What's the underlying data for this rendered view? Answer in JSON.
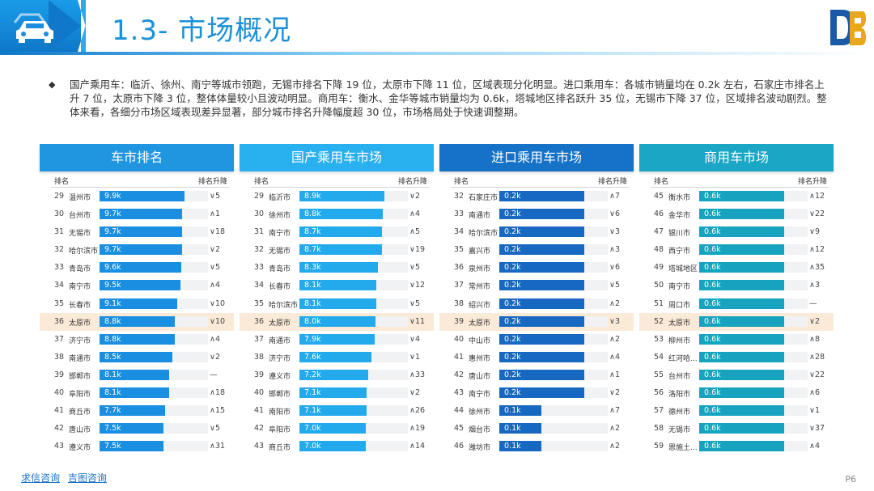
{
  "header": {
    "title": "1.3- 市场概况",
    "brand_color": "#1a90d8"
  },
  "summary": {
    "bullet": "◆",
    "text": "国产乘用车：临沂、徐州、南宁等城市领跑，无锡市排名下降 19 位，太原市下降 11 位，区域表现分化明显。进口乘用车：各城市销量均在 0.2k 左右，石家庄市排名上升 7 位，太原市下降 3 位，整体体量较小且波动明显。商用车：衡水、金华等城市销量均为 0.6k，塔城地区排名跃升 35 位，无锡市下降 37 位，区域排名波动剧烈。整体来看，各细分市场区域表现差异显著，部分城市排名升降幅度超 30 位，市场格局处于快速调整期。"
  },
  "panels": [
    {
      "title": "车市排名",
      "head_color": "#2196e0",
      "bar_color": "#1a8ee0",
      "col_rank": "排名",
      "col_change": "排名升降",
      "rows": [
        {
          "rank": "29",
          "city": "温州市",
          "value": "9.9k",
          "v": 9.9,
          "change": "∨5",
          "hl": false
        },
        {
          "rank": "30",
          "city": "台州市",
          "value": "9.7k",
          "v": 9.7,
          "change": "∧1",
          "hl": false
        },
        {
          "rank": "31",
          "city": "无锡市",
          "value": "9.7k",
          "v": 9.7,
          "change": "∨18",
          "hl": false
        },
        {
          "rank": "32",
          "city": "哈尔滨市",
          "value": "9.7k",
          "v": 9.7,
          "change": "∨2",
          "hl": false
        },
        {
          "rank": "33",
          "city": "青岛市",
          "value": "9.6k",
          "v": 9.6,
          "change": "∨5",
          "hl": false
        },
        {
          "rank": "34",
          "city": "南宁市",
          "value": "9.5k",
          "v": 9.5,
          "change": "∧4",
          "hl": false
        },
        {
          "rank": "35",
          "city": "长春市",
          "value": "9.1k",
          "v": 9.1,
          "change": "∨10",
          "hl": false
        },
        {
          "rank": "36",
          "city": "太原市",
          "value": "8.8k",
          "v": 8.8,
          "change": "∨10",
          "hl": true
        },
        {
          "rank": "37",
          "city": "济宁市",
          "value": "8.8k",
          "v": 8.8,
          "change": "∧4",
          "hl": false
        },
        {
          "rank": "38",
          "city": "南通市",
          "value": "8.5k",
          "v": 8.5,
          "change": "∨2",
          "hl": false
        },
        {
          "rank": "39",
          "city": "邯郸市",
          "value": "8.1k",
          "v": 8.1,
          "change": "—",
          "hl": false
        },
        {
          "rank": "40",
          "city": "阜阳市",
          "value": "8.1k",
          "v": 8.1,
          "change": "∧18",
          "hl": false
        },
        {
          "rank": "41",
          "city": "商丘市",
          "value": "7.7k",
          "v": 7.7,
          "change": "∧15",
          "hl": false
        },
        {
          "rank": "42",
          "city": "唐山市",
          "value": "7.5k",
          "v": 7.5,
          "change": "∨5",
          "hl": false
        },
        {
          "rank": "43",
          "city": "遵义市",
          "value": "7.5k",
          "v": 7.5,
          "change": "∧31",
          "hl": false
        }
      ]
    },
    {
      "title": "国产乘用车市场",
      "head_color": "#29b0ee",
      "bar_color": "#22aaec",
      "col_rank": "排名",
      "col_change": "排名升降",
      "rows": [
        {
          "rank": "29",
          "city": "临沂市",
          "value": "8.9k",
          "v": 8.9,
          "change": "∨2",
          "hl": false
        },
        {
          "rank": "30",
          "city": "徐州市",
          "value": "8.8k",
          "v": 8.8,
          "change": "∧4",
          "hl": false
        },
        {
          "rank": "31",
          "city": "南宁市",
          "value": "8.7k",
          "v": 8.7,
          "change": "∧5",
          "hl": false
        },
        {
          "rank": "32",
          "city": "无锡市",
          "value": "8.7k",
          "v": 8.7,
          "change": "∨19",
          "hl": false
        },
        {
          "rank": "33",
          "city": "青岛市",
          "value": "8.3k",
          "v": 8.3,
          "change": "∨5",
          "hl": false
        },
        {
          "rank": "34",
          "city": "长春市",
          "value": "8.1k",
          "v": 8.1,
          "change": "∨12",
          "hl": false
        },
        {
          "rank": "35",
          "city": "哈尔滨市",
          "value": "8.1k",
          "v": 8.1,
          "change": "∨5",
          "hl": false
        },
        {
          "rank": "36",
          "city": "太原市",
          "value": "8.0k",
          "v": 8.0,
          "change": "∨11",
          "hl": true
        },
        {
          "rank": "37",
          "city": "南通市",
          "value": "7.9k",
          "v": 7.9,
          "change": "∨4",
          "hl": false
        },
        {
          "rank": "38",
          "city": "济宁市",
          "value": "7.6k",
          "v": 7.6,
          "change": "∨1",
          "hl": false
        },
        {
          "rank": "39",
          "city": "遵义市",
          "value": "7.2k",
          "v": 7.2,
          "change": "∧33",
          "hl": false
        },
        {
          "rank": "40",
          "city": "邯郸市",
          "value": "7.1k",
          "v": 7.1,
          "change": "∨2",
          "hl": false
        },
        {
          "rank": "41",
          "city": "南阳市",
          "value": "7.1k",
          "v": 7.1,
          "change": "∧26",
          "hl": false
        },
        {
          "rank": "42",
          "city": "阜阳市",
          "value": "7.0k",
          "v": 7.0,
          "change": "∧19",
          "hl": false
        },
        {
          "rank": "43",
          "city": "商丘市",
          "value": "7.0k",
          "v": 7.0,
          "change": "∧14",
          "hl": false
        }
      ]
    },
    {
      "title": "进口乘用车市场",
      "head_color": "#1572c6",
      "bar_color": "#1668c0",
      "col_rank": "排名",
      "col_change": "排名升降",
      "rows": [
        {
          "rank": "32",
          "city": "石家庄市",
          "value": "0.2k",
          "v": 0.2,
          "change": "∧7",
          "hl": false
        },
        {
          "rank": "33",
          "city": "南通市",
          "value": "0.2k",
          "v": 0.2,
          "change": "∨6",
          "hl": false
        },
        {
          "rank": "34",
          "city": "哈尔滨市",
          "value": "0.2k",
          "v": 0.2,
          "change": "∨3",
          "hl": false
        },
        {
          "rank": "35",
          "city": "嘉兴市",
          "value": "0.2k",
          "v": 0.2,
          "change": "∧3",
          "hl": false
        },
        {
          "rank": "36",
          "city": "泉州市",
          "value": "0.2k",
          "v": 0.2,
          "change": "∨6",
          "hl": false
        },
        {
          "rank": "37",
          "city": "常州市",
          "value": "0.2k",
          "v": 0.2,
          "change": "∨5",
          "hl": false
        },
        {
          "rank": "38",
          "city": "绍兴市",
          "value": "0.2k",
          "v": 0.2,
          "change": "∧2",
          "hl": false
        },
        {
          "rank": "39",
          "city": "太原市",
          "value": "0.2k",
          "v": 0.2,
          "change": "∨3",
          "hl": true
        },
        {
          "rank": "40",
          "city": "中山市",
          "value": "0.2k",
          "v": 0.2,
          "change": "∧2",
          "hl": false
        },
        {
          "rank": "41",
          "city": "惠州市",
          "value": "0.2k",
          "v": 0.2,
          "change": "∧4",
          "hl": false
        },
        {
          "rank": "42",
          "city": "唐山市",
          "value": "0.2k",
          "v": 0.2,
          "change": "∧1",
          "hl": false
        },
        {
          "rank": "43",
          "city": "南宁市",
          "value": "0.2k",
          "v": 0.2,
          "change": "∨2",
          "hl": false
        },
        {
          "rank": "44",
          "city": "徐州市",
          "value": "0.1k",
          "v": 0.1,
          "change": "∧7",
          "hl": false
        },
        {
          "rank": "45",
          "city": "烟台市",
          "value": "0.1k",
          "v": 0.1,
          "change": "∧2",
          "hl": false
        },
        {
          "rank": "46",
          "city": "潍坊市",
          "value": "0.1k",
          "v": 0.1,
          "change": "∧2",
          "hl": false
        }
      ]
    },
    {
      "title": "商用车市场",
      "head_color": "#1aa6c4",
      "bar_color": "#17a3c0",
      "col_rank": "排名",
      "col_change": "排名升降",
      "rows": [
        {
          "rank": "45",
          "city": "衡水市",
          "value": "0.6k",
          "v": 0.6,
          "change": "∧12",
          "hl": false
        },
        {
          "rank": "46",
          "city": "金华市",
          "value": "0.6k",
          "v": 0.6,
          "change": "∨22",
          "hl": false
        },
        {
          "rank": "47",
          "city": "银川市",
          "value": "0.6k",
          "v": 0.6,
          "change": "∨9",
          "hl": false
        },
        {
          "rank": "48",
          "city": "西宁市",
          "value": "0.6k",
          "v": 0.6,
          "change": "∧12",
          "hl": false
        },
        {
          "rank": "49",
          "city": "塔城地区",
          "value": "0.6k",
          "v": 0.6,
          "change": "∧35",
          "hl": false
        },
        {
          "rank": "50",
          "city": "南宁市",
          "value": "0.6k",
          "v": 0.6,
          "change": "∧3",
          "hl": false
        },
        {
          "rank": "51",
          "city": "周口市",
          "value": "0.6k",
          "v": 0.6,
          "change": "—",
          "hl": false
        },
        {
          "rank": "52",
          "city": "太原市",
          "value": "0.6k",
          "v": 0.6,
          "change": "∨2",
          "hl": true
        },
        {
          "rank": "53",
          "city": "柳州市",
          "value": "0.6k",
          "v": 0.6,
          "change": "∧8",
          "hl": false
        },
        {
          "rank": "54",
          "city": "红河哈...",
          "value": "0.6k",
          "v": 0.6,
          "change": "∧28",
          "hl": false
        },
        {
          "rank": "55",
          "city": "台州市",
          "value": "0.6k",
          "v": 0.6,
          "change": "∨22",
          "hl": false
        },
        {
          "rank": "56",
          "city": "洛阳市",
          "value": "0.6k",
          "v": 0.6,
          "change": "∧6",
          "hl": false
        },
        {
          "rank": "57",
          "city": "德州市",
          "value": "0.6k",
          "v": 0.6,
          "change": "∨1",
          "hl": false
        },
        {
          "rank": "58",
          "city": "无锡市",
          "value": "0.6k",
          "v": 0.6,
          "change": "∨37",
          "hl": false
        },
        {
          "rank": "59",
          "city": "恩施土...",
          "value": "0.6k",
          "v": 0.6,
          "change": "∧4",
          "hl": false
        }
      ]
    }
  ],
  "footer": {
    "link1": "求信咨询",
    "link2": "吉图咨询",
    "page": "P6"
  }
}
